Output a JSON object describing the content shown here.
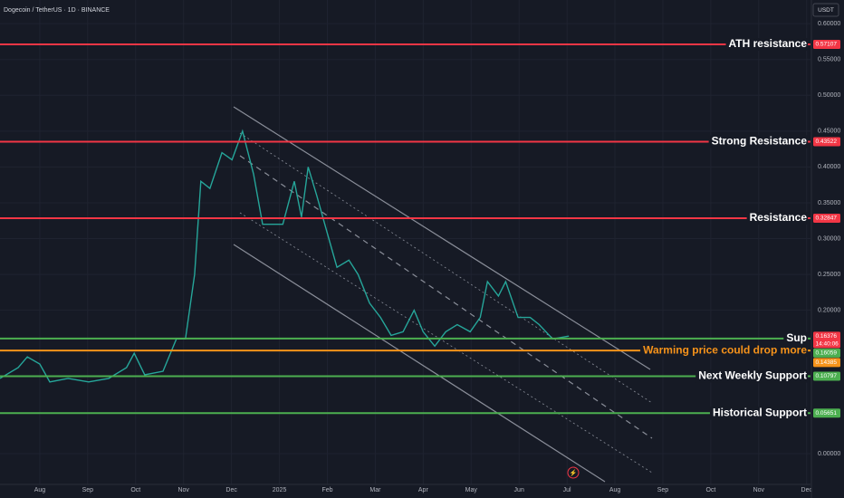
{
  "chart_data": {
    "type": "line",
    "title": "Dogecoin / TetherUS · 1D · BINANCE",
    "currency": "USDT",
    "color": "#26a69a",
    "x": [
      -0.83,
      -0.45,
      -0.26,
      0,
      0.21,
      0.59,
      1.02,
      1.44,
      1.81,
      1.97,
      2.19,
      2.57,
      2.85,
      3.04,
      3.23,
      3.36,
      3.55,
      3.8,
      4.01,
      4.23,
      4.46,
      4.65,
      4.84,
      5.07,
      5.31,
      5.46,
      5.6,
      5.78,
      6.03,
      6.2,
      6.45,
      6.64,
      6.88,
      7.11,
      7.33,
      7.58,
      7.81,
      8.0,
      8.24,
      8.47,
      8.71,
      8.98,
      9.19,
      9.34,
      9.57,
      9.72,
      9.98,
      10.23,
      10.42,
      10.7,
      11.04
    ],
    "values": [
      0.105,
      0.12,
      0.135,
      0.125,
      0.1,
      0.105,
      0.1,
      0.105,
      0.12,
      0.14,
      0.11,
      0.115,
      0.16,
      0.16,
      0.25,
      0.38,
      0.37,
      0.42,
      0.41,
      0.45,
      0.39,
      0.32,
      0.32,
      0.32,
      0.38,
      0.33,
      0.4,
      0.36,
      0.3,
      0.26,
      0.27,
      0.25,
      0.21,
      0.19,
      0.165,
      0.17,
      0.2,
      0.17,
      0.15,
      0.17,
      0.18,
      0.17,
      0.19,
      0.24,
      0.22,
      0.24,
      0.19,
      0.19,
      0.18,
      0.16,
      0.164
    ],
    "xlim": [
      -0.83,
      16.08
    ],
    "xticks": [
      {
        "value": 0,
        "label": "Aug"
      },
      {
        "value": 1,
        "label": "Sep"
      },
      {
        "value": 2,
        "label": "Oct"
      },
      {
        "value": 3,
        "label": "Nov"
      },
      {
        "value": 4,
        "label": "Dec"
      },
      {
        "value": 5,
        "label": "2025"
      },
      {
        "value": 6,
        "label": "Feb"
      },
      {
        "value": 7,
        "label": "Mar"
      },
      {
        "value": 8,
        "label": "Apr"
      },
      {
        "value": 9,
        "label": "May"
      },
      {
        "value": 10,
        "label": "Jun"
      },
      {
        "value": 11,
        "label": "Jul"
      },
      {
        "value": 12,
        "label": "Aug"
      },
      {
        "value": 13,
        "label": "Sep"
      },
      {
        "value": 14,
        "label": "Oct"
      },
      {
        "value": 15,
        "label": "Nov"
      },
      {
        "value": 16,
        "label": "Dec"
      }
    ],
    "ylim": [
      -0.043,
      0.633
    ],
    "yticks": [
      {
        "value": 0.6,
        "label": "0.60000"
      },
      {
        "value": 0.55,
        "label": "0.55000"
      },
      {
        "value": 0.5,
        "label": "0.50000"
      },
      {
        "value": 0.45,
        "label": "0.45000"
      },
      {
        "value": 0.4,
        "label": "0.40000"
      },
      {
        "value": 0.35,
        "label": "0.35000"
      },
      {
        "value": 0.3,
        "label": "0.30000"
      },
      {
        "value": 0.25,
        "label": "0.25000"
      },
      {
        "value": 0.2,
        "label": "0.20000"
      },
      {
        "value": 0,
        "label": "0.00000"
      }
    ],
    "grid": true,
    "levels": [
      {
        "label": "ATH resistance",
        "value": 0.57107,
        "color": "#f23645",
        "text_color": "#ffffff"
      },
      {
        "label": "Strong Resistance",
        "value": 0.43522,
        "color": "#f23645",
        "text_color": "#ffffff"
      },
      {
        "label": "Resistance",
        "value": 0.32847,
        "color": "#f23645",
        "text_color": "#ffffff"
      },
      {
        "label": "Sup",
        "value": 0.16059,
        "color": "#4caf50",
        "text_color": "#ffffff"
      },
      {
        "label": "Warming price could drop more",
        "value": 0.14385,
        "color": "#f7931a",
        "text_color": "#f7931a"
      },
      {
        "label": "Next Weekly Support",
        "value": 0.10797,
        "color": "#4caf50",
        "text_color": "#ffffff"
      },
      {
        "label": "Historical Support",
        "value": 0.05651,
        "color": "#4caf50",
        "text_color": "#ffffff"
      }
    ],
    "current_price": {
      "value": 0.16376,
      "countdown": "14:40:06",
      "color": "#f23645"
    }
  }
}
